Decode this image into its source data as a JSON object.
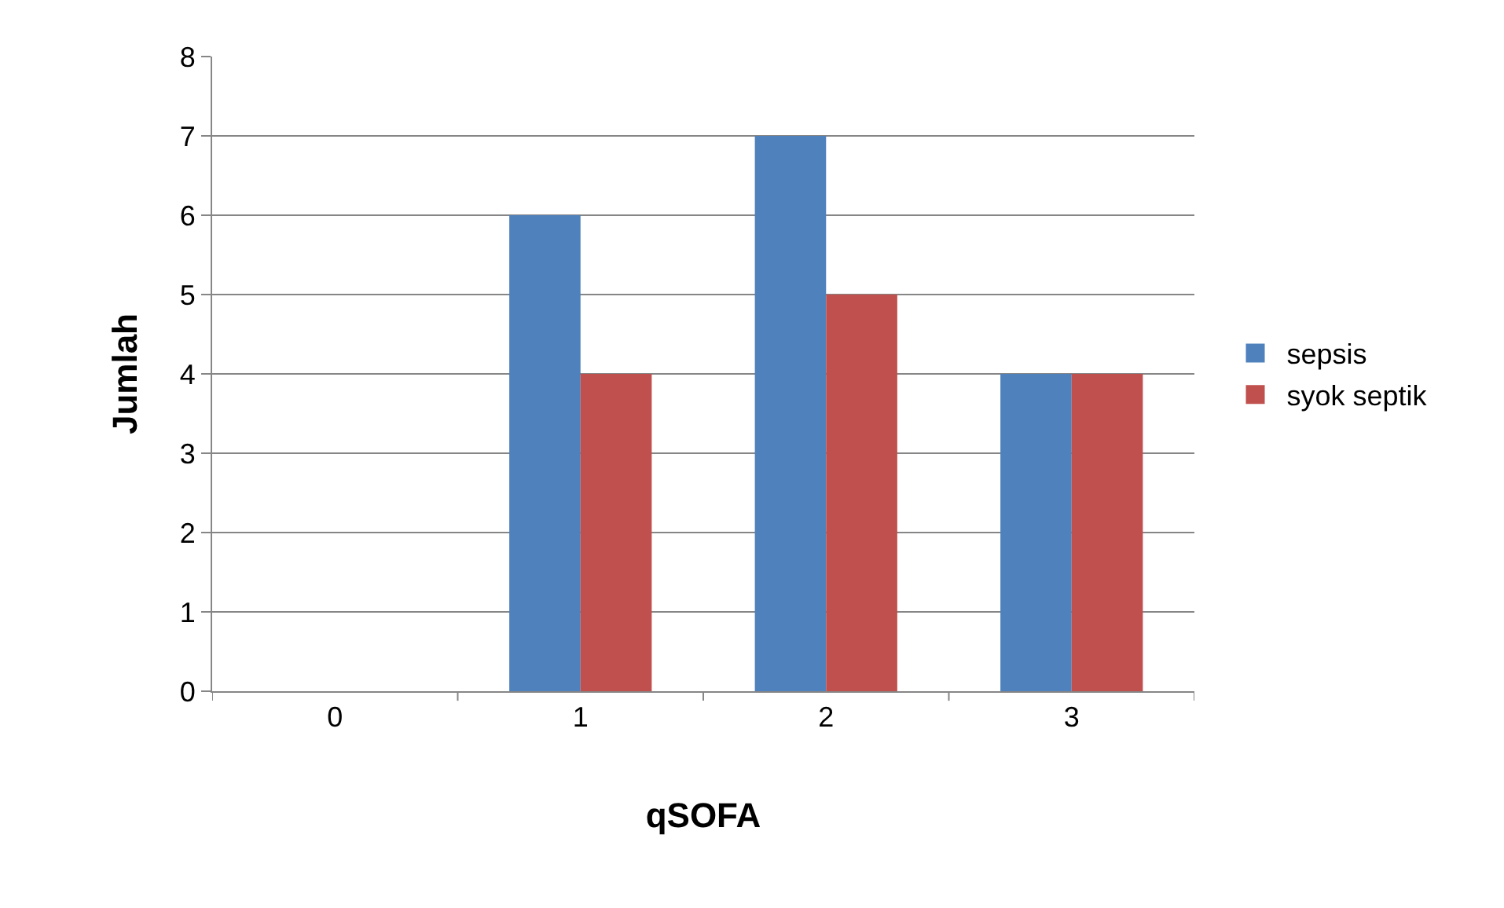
{
  "chart_data": {
    "type": "bar",
    "xlabel": "qSOFA",
    "ylabel": "Jumlah",
    "categories": [
      "0",
      "1",
      "2",
      "3"
    ],
    "series": [
      {
        "name": "sepsis",
        "color": "#4f81bd",
        "values": [
          0,
          6,
          7,
          4
        ]
      },
      {
        "name": "syok septik",
        "color": "#c0504d",
        "values": [
          0,
          4,
          5,
          4
        ]
      }
    ],
    "ylim": [
      0,
      8
    ],
    "yticks": [
      0,
      1,
      2,
      3,
      4,
      5,
      6,
      7,
      8
    ],
    "grid": "y",
    "legend": "right"
  }
}
